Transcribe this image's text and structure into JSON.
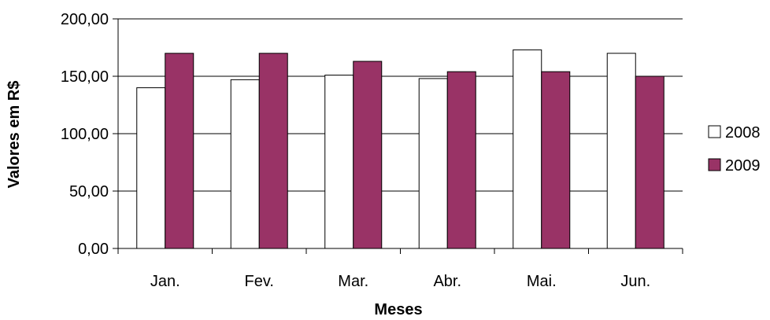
{
  "chart_data": {
    "type": "bar",
    "categories": [
      "Jan.",
      "Fev.",
      "Mar.",
      "Abr.",
      "Mai.",
      "Jun."
    ],
    "series": [
      {
        "name": "2008",
        "values": [
          140,
          147,
          151,
          148,
          173,
          170
        ],
        "color": "#FFFFFF"
      },
      {
        "name": "2009",
        "values": [
          170,
          170,
          163,
          154,
          154,
          150
        ],
        "color": "#993366"
      }
    ],
    "yticks": [
      "0,00",
      "50,00",
      "100,00",
      "150,00",
      "200,00"
    ],
    "ylim": [
      0,
      200
    ],
    "xlabel": "Meses",
    "ylabel": "Valores em R$",
    "grid": true,
    "legend_position": "right"
  }
}
